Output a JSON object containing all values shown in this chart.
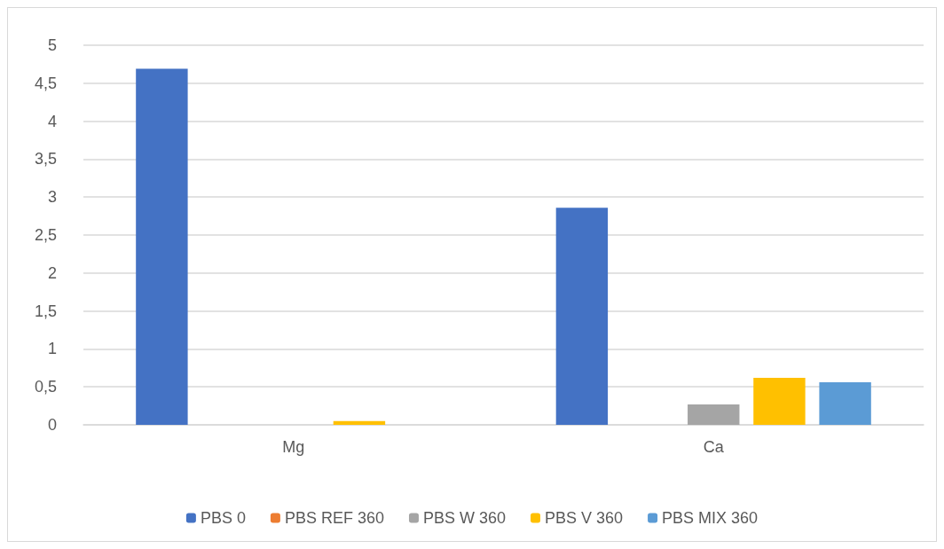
{
  "chart_data": {
    "type": "bar",
    "categories": [
      "Mg",
      "Ca"
    ],
    "series": [
      {
        "name": "PBS 0",
        "color": "#4472c4",
        "values": [
          4.69,
          2.86
        ]
      },
      {
        "name": "PBS REF 360",
        "color": "#ed7d31",
        "values": [
          0,
          0
        ]
      },
      {
        "name": "PBS W 360",
        "color": "#a5a5a5",
        "values": [
          0,
          0.27
        ]
      },
      {
        "name": "PBS V 360",
        "color": "#ffc000",
        "values": [
          0.05,
          0.62
        ]
      },
      {
        "name": "PBS MIX 360",
        "color": "#5b9bd5",
        "values": [
          0,
          0.56
        ]
      }
    ],
    "ylim": [
      0,
      5
    ],
    "yticks": [
      0,
      {
        "value": 0.5,
        "label": "0,5"
      },
      1,
      {
        "value": 1.5,
        "label": "1,5"
      },
      2,
      {
        "value": 2.5,
        "label": "2,5"
      },
      3,
      {
        "value": 3.5,
        "label": "3,5"
      },
      4,
      {
        "value": 4.5,
        "label": "4,5"
      },
      5
    ],
    "grid": "y",
    "legend": "bottom"
  }
}
